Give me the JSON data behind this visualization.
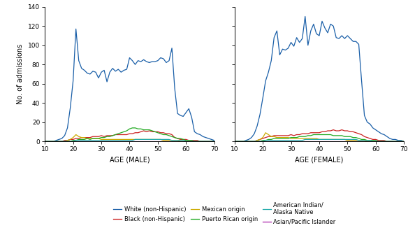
{
  "ages": [
    10,
    11,
    12,
    13,
    14,
    15,
    16,
    17,
    18,
    19,
    20,
    21,
    22,
    23,
    24,
    25,
    26,
    27,
    28,
    29,
    30,
    31,
    32,
    33,
    34,
    35,
    36,
    37,
    38,
    39,
    40,
    41,
    42,
    43,
    44,
    45,
    46,
    47,
    48,
    49,
    50,
    51,
    52,
    53,
    54,
    55,
    56,
    57,
    58,
    59,
    60,
    61,
    62,
    63,
    64,
    65,
    66,
    67,
    68,
    69,
    70
  ],
  "male": {
    "white": [
      0,
      0,
      0,
      0,
      1,
      2,
      3,
      6,
      14,
      35,
      63,
      117,
      84,
      76,
      74,
      71,
      70,
      73,
      72,
      66,
      72,
      74,
      62,
      72,
      76,
      73,
      75,
      72,
      74,
      75,
      87,
      84,
      80,
      84,
      83,
      85,
      83,
      82,
      83,
      83,
      84,
      87,
      86,
      82,
      84,
      97,
      55,
      29,
      27,
      26,
      30,
      34,
      25,
      10,
      8,
      7,
      5,
      4,
      3,
      2,
      1
    ],
    "black": [
      0,
      0,
      0,
      0,
      0,
      0,
      0,
      1,
      1,
      2,
      2,
      3,
      3,
      4,
      4,
      4,
      4,
      5,
      5,
      5,
      6,
      5,
      6,
      6,
      6,
      7,
      7,
      7,
      7,
      7,
      8,
      8,
      9,
      9,
      10,
      11,
      10,
      11,
      10,
      10,
      10,
      9,
      9,
      8,
      8,
      7,
      4,
      3,
      2,
      2,
      2,
      1,
      1,
      1,
      1,
      0,
      0,
      0,
      0,
      0,
      0
    ],
    "mexican": [
      0,
      0,
      0,
      0,
      0,
      0,
      0,
      0,
      1,
      2,
      4,
      7,
      5,
      4,
      4,
      3,
      3,
      3,
      3,
      3,
      2,
      2,
      2,
      2,
      2,
      2,
      2,
      2,
      2,
      2,
      2,
      2,
      2,
      2,
      2,
      2,
      2,
      2,
      2,
      2,
      2,
      2,
      1,
      1,
      1,
      1,
      1,
      1,
      0,
      0,
      0,
      0,
      0,
      0,
      0,
      0,
      0,
      0,
      0,
      0,
      0
    ],
    "puerto_rican": [
      0,
      0,
      0,
      0,
      0,
      0,
      0,
      0,
      0,
      0,
      1,
      1,
      2,
      2,
      2,
      3,
      2,
      3,
      3,
      3,
      4,
      4,
      5,
      5,
      6,
      7,
      8,
      9,
      10,
      11,
      13,
      14,
      14,
      13,
      13,
      12,
      12,
      12,
      11,
      10,
      9,
      8,
      7,
      7,
      6,
      5,
      4,
      3,
      3,
      2,
      1,
      1,
      1,
      0,
      0,
      0,
      0,
      0,
      0,
      0,
      0
    ],
    "american_indian": [
      0,
      0,
      0,
      0,
      0,
      0,
      0,
      0,
      0,
      0,
      0,
      1,
      1,
      1,
      1,
      1,
      1,
      1,
      1,
      1,
      1,
      1,
      1,
      1,
      1,
      1,
      1,
      1,
      1,
      1,
      1,
      1,
      2,
      2,
      2,
      2,
      2,
      2,
      2,
      2,
      2,
      2,
      2,
      2,
      2,
      1,
      1,
      1,
      1,
      1,
      0,
      0,
      0,
      0,
      0,
      0,
      0,
      0,
      0,
      0,
      0
    ],
    "asian": [
      0,
      0,
      0,
      0,
      0,
      0,
      0,
      0,
      0,
      0,
      0,
      0,
      0,
      0,
      0,
      0,
      0,
      0,
      0,
      0,
      0,
      0,
      0,
      0,
      0,
      0,
      0,
      0,
      0,
      0,
      0,
      0,
      0,
      0,
      0,
      0,
      0,
      0,
      0,
      0,
      0,
      0,
      0,
      0,
      0,
      0,
      0,
      0,
      0,
      0,
      0,
      0,
      0,
      0,
      0,
      0,
      0,
      0,
      0,
      0,
      0
    ]
  },
  "female": {
    "white": [
      0,
      0,
      0,
      0,
      1,
      2,
      4,
      8,
      16,
      28,
      45,
      63,
      72,
      84,
      108,
      115,
      90,
      96,
      95,
      97,
      103,
      99,
      108,
      103,
      107,
      130,
      100,
      115,
      122,
      112,
      110,
      125,
      118,
      113,
      122,
      120,
      108,
      107,
      110,
      107,
      110,
      107,
      104,
      104,
      101,
      63,
      27,
      20,
      18,
      14,
      12,
      10,
      8,
      7,
      5,
      3,
      2,
      2,
      1,
      1,
      0
    ],
    "black": [
      0,
      0,
      0,
      0,
      0,
      0,
      0,
      0,
      1,
      2,
      3,
      4,
      5,
      5,
      6,
      6,
      6,
      6,
      6,
      6,
      7,
      6,
      7,
      7,
      8,
      8,
      8,
      9,
      9,
      9,
      9,
      10,
      10,
      11,
      11,
      12,
      11,
      11,
      12,
      11,
      11,
      10,
      10,
      9,
      8,
      7,
      5,
      4,
      3,
      2,
      2,
      1,
      1,
      1,
      0,
      0,
      0,
      0,
      0,
      0,
      0
    ],
    "mexican": [
      0,
      0,
      0,
      0,
      0,
      0,
      0,
      0,
      1,
      2,
      4,
      9,
      7,
      5,
      5,
      4,
      4,
      4,
      4,
      4,
      3,
      3,
      3,
      3,
      3,
      3,
      3,
      3,
      3,
      3,
      2,
      2,
      2,
      2,
      2,
      2,
      2,
      2,
      2,
      2,
      1,
      1,
      1,
      1,
      1,
      1,
      1,
      0,
      0,
      0,
      0,
      0,
      0,
      0,
      0,
      0,
      0,
      0,
      0,
      0,
      0
    ],
    "puerto_rican": [
      0,
      0,
      0,
      0,
      0,
      0,
      0,
      0,
      0,
      0,
      1,
      1,
      2,
      2,
      3,
      3,
      3,
      3,
      3,
      3,
      4,
      4,
      4,
      5,
      5,
      5,
      6,
      6,
      7,
      7,
      7,
      7,
      7,
      7,
      7,
      6,
      6,
      6,
      6,
      5,
      5,
      5,
      4,
      4,
      3,
      2,
      2,
      1,
      1,
      1,
      1,
      0,
      0,
      0,
      0,
      0,
      0,
      0,
      0,
      0,
      0
    ],
    "american_indian": [
      0,
      0,
      0,
      0,
      0,
      0,
      0,
      0,
      0,
      0,
      0,
      1,
      1,
      1,
      1,
      1,
      1,
      1,
      1,
      1,
      1,
      1,
      1,
      1,
      1,
      2,
      2,
      2,
      2,
      2,
      2,
      2,
      2,
      2,
      2,
      2,
      2,
      2,
      2,
      2,
      2,
      2,
      2,
      2,
      1,
      1,
      1,
      1,
      1,
      0,
      0,
      0,
      0,
      0,
      0,
      0,
      0,
      0,
      0,
      0,
      0
    ],
    "asian": [
      0,
      0,
      0,
      0,
      0,
      0,
      0,
      0,
      0,
      0,
      0,
      0,
      0,
      0,
      0,
      0,
      0,
      0,
      0,
      0,
      0,
      0,
      0,
      0,
      0,
      0,
      0,
      0,
      0,
      0,
      0,
      0,
      0,
      0,
      0,
      0,
      0,
      0,
      0,
      0,
      0,
      0,
      0,
      0,
      0,
      0,
      0,
      0,
      0,
      0,
      0,
      0,
      0,
      0,
      0,
      0,
      0,
      0,
      0,
      0,
      0
    ]
  },
  "colors": {
    "white": "#1a5fa8",
    "black": "#cc2222",
    "mexican": "#ccaa00",
    "puerto_rican": "#22aa22",
    "american_indian": "#22aaaa",
    "asian": "#aa22aa"
  },
  "labels": {
    "white": "White (non-Hispanic)",
    "black": "Black (non-Hispanic)",
    "mexican": "Mexican origin",
    "puerto_rican": "Puerto Rican origin",
    "american_indian": "American Indian/\nAlaska Native",
    "asian": "Asian/Pacific Islander"
  },
  "ylim": [
    0,
    140
  ],
  "yticks": [
    0,
    20,
    40,
    60,
    80,
    100,
    120,
    140
  ],
  "xlim": [
    10,
    70
  ],
  "xticks": [
    10,
    20,
    30,
    40,
    50,
    60,
    70
  ],
  "xlabel_male": "AGE (MALE)",
  "xlabel_female": "AGE (FEMALE)",
  "ylabel": "No. of admissions",
  "linewidth": 0.9
}
